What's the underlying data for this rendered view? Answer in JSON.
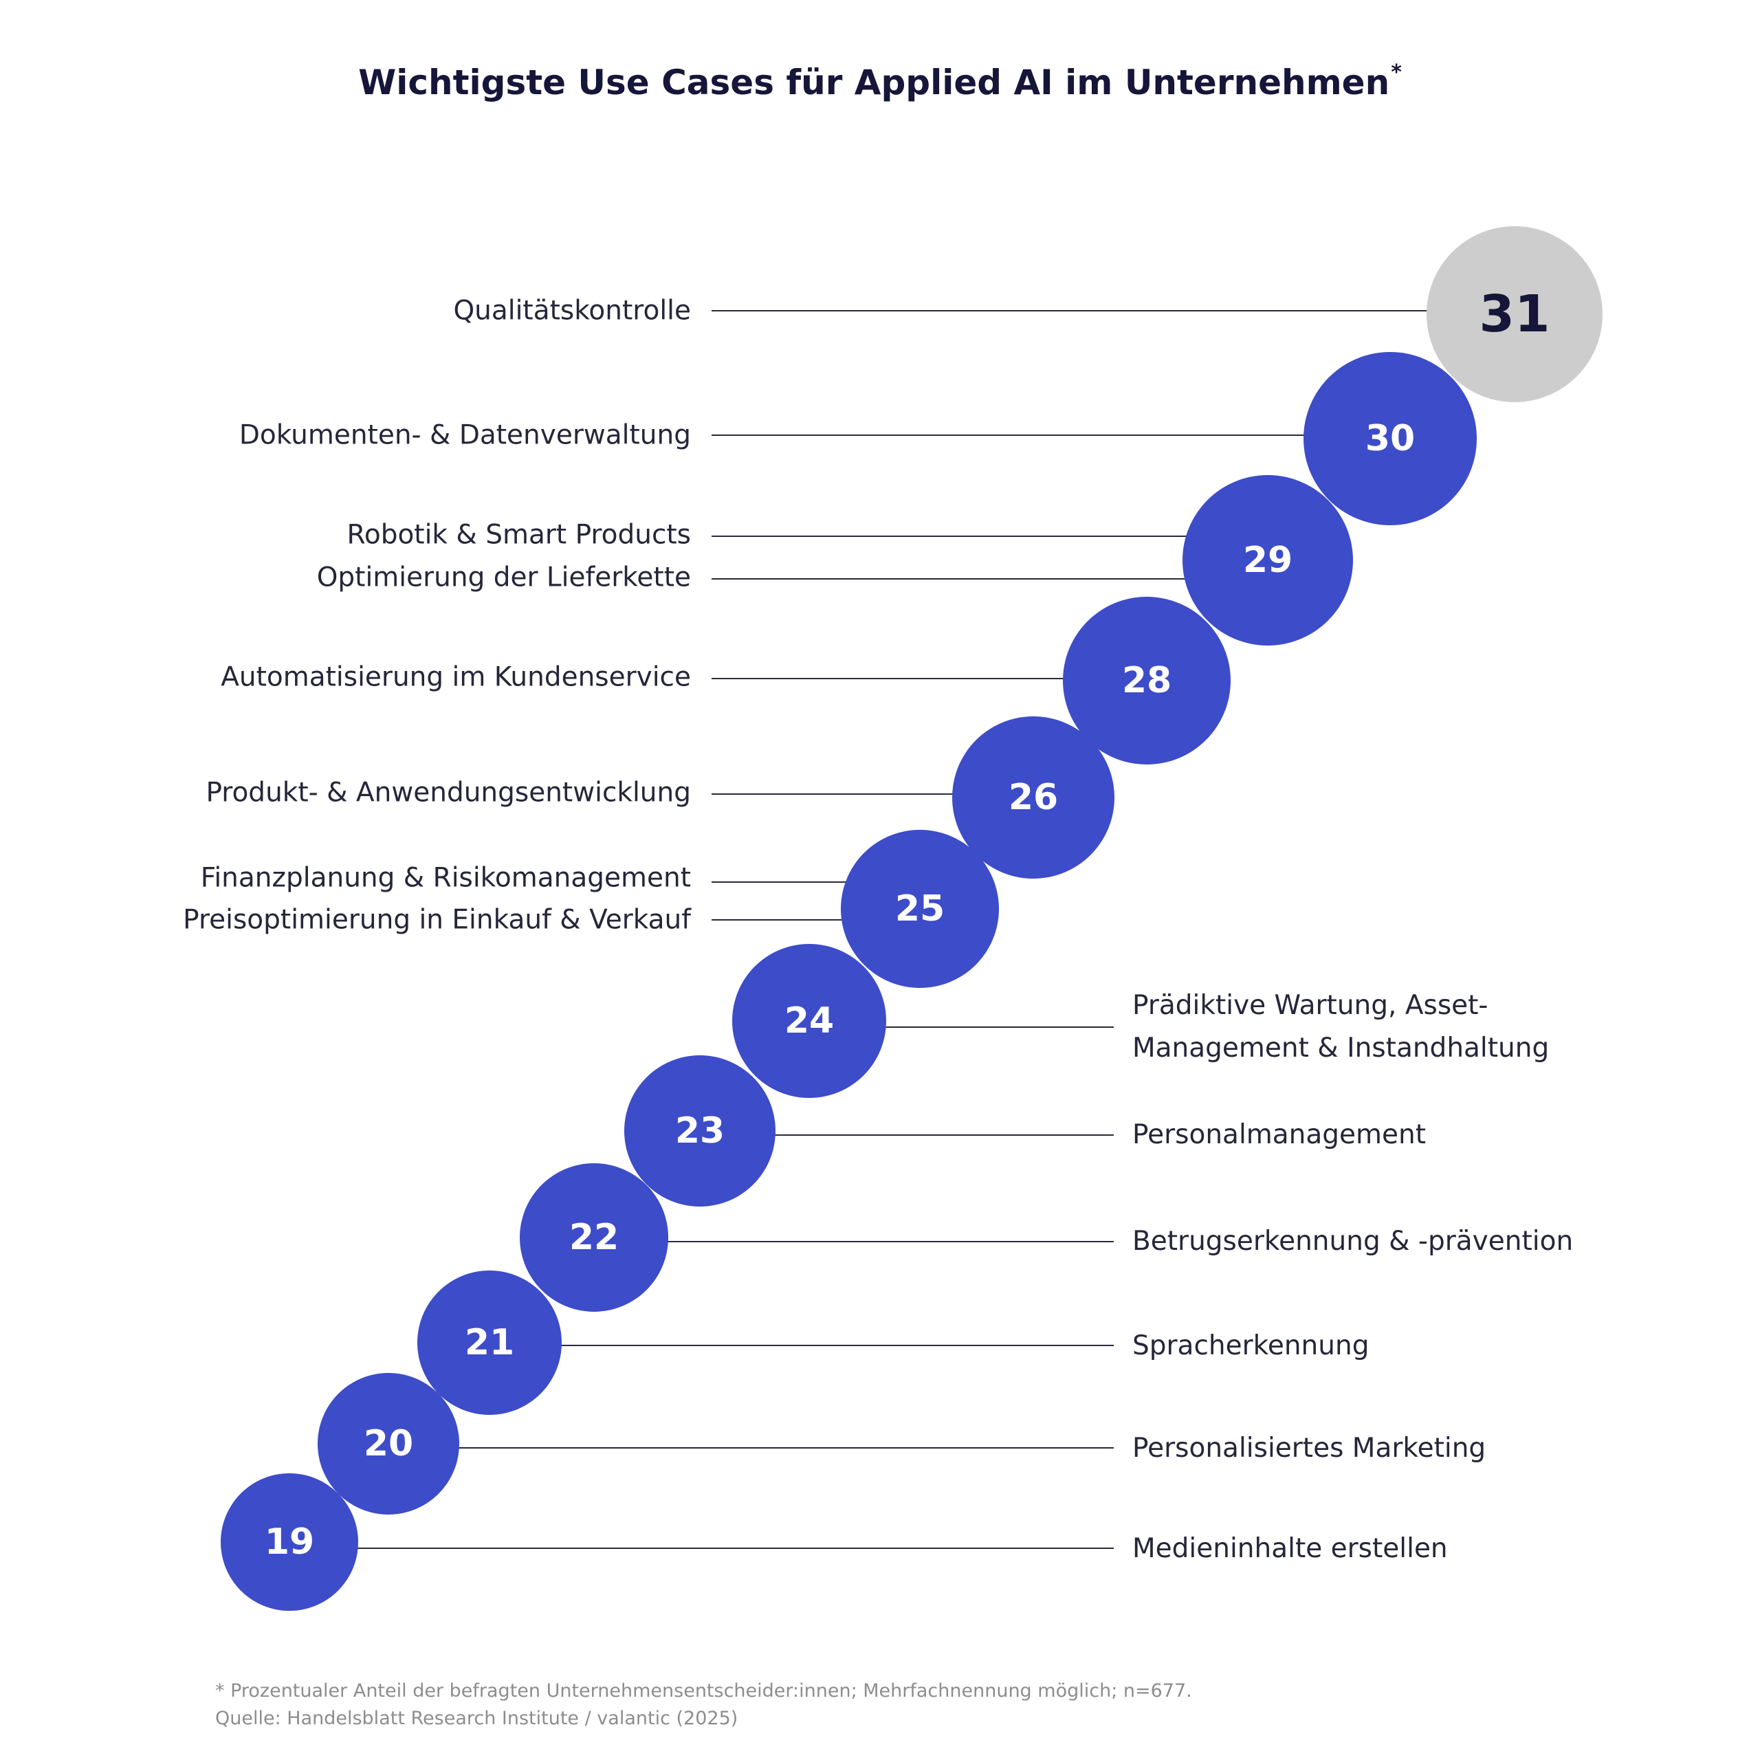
{
  "footnote": {
    "note": "* Prozentualer Anteil der befragten Unternehmensentscheider:innen; Mehrfachnennung möglich; n=677.",
    "source": "Quelle: Handelsblatt Research Institute / valantic (2025)"
  },
  "colors": {
    "bubble": "#3d4cc8",
    "bubble_top": "#cdcdcd",
    "line": "#2a2a3e",
    "value_text": "#ffffff",
    "value_text_top": "#16163a"
  },
  "chart_data": {
    "type": "bubble-ranking",
    "title": "Wichtigste Use Cases für Applied AI im Unternehmen",
    "title_marker": "*",
    "unit": "%",
    "values": [
      31,
      30,
      29,
      28,
      26,
      25,
      24,
      23,
      22,
      21,
      20,
      19
    ],
    "categories": [
      [
        "Qualitätskontrolle"
      ],
      [
        "Dokumenten- & Datenverwaltung"
      ],
      [
        "Robotik & Smart Products",
        "Optimierung der Lieferkette"
      ],
      [
        "Automatisierung im Kundenservice"
      ],
      [
        "Produkt- & Anwendungsentwicklung"
      ],
      [
        "Finanzplanung & Risikomanagement",
        "Preisoptimierung in Einkauf & Verkauf"
      ],
      [
        "Prädiktive Wartung, Asset-Management & Instandhaltung"
      ],
      [
        "Personalmanagement"
      ],
      [
        "Betrugserkennung & -prävention"
      ],
      [
        "Spracherkennung"
      ],
      [
        "Personalisiertes Marketing"
      ],
      [
        "Medieninhalte erstellen"
      ]
    ]
  }
}
